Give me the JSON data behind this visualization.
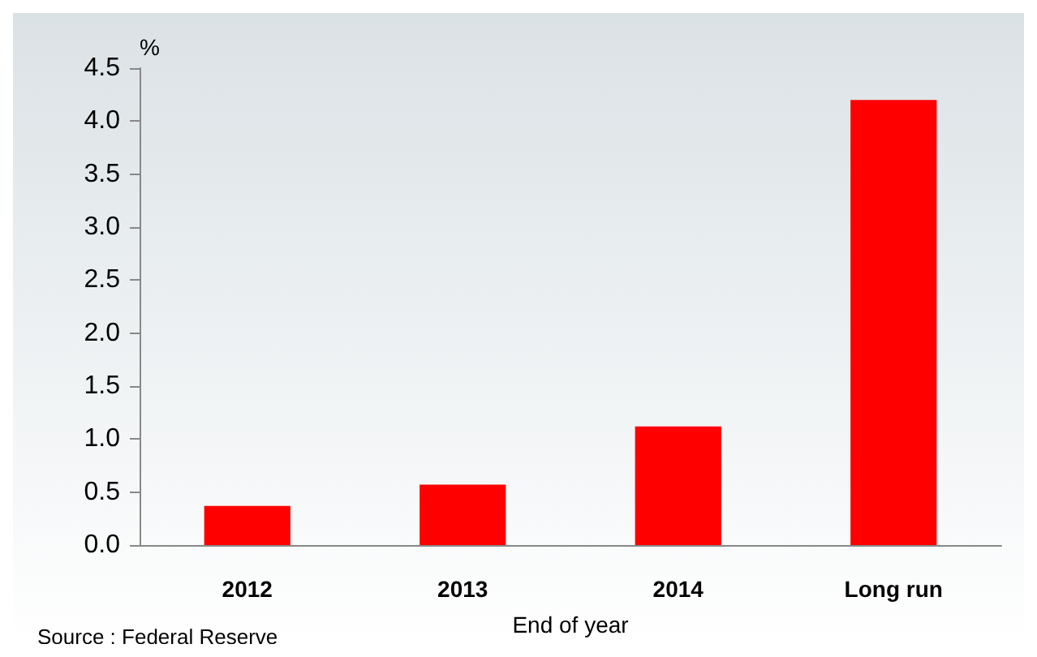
{
  "chart_data": {
    "type": "bar",
    "categories": [
      "2012",
      "2013",
      "2014",
      "Long run"
    ],
    "values": [
      0.37,
      0.57,
      1.12,
      4.2
    ],
    "color": "#ff0000",
    "ylabel": "%",
    "xlabel": "End of year",
    "ylim": [
      0,
      4.5
    ],
    "yticks": [
      {
        "value": 0,
        "label": "0.0"
      },
      0.5,
      {
        "value": 1,
        "label": "1.0"
      },
      1.5,
      {
        "value": 2,
        "label": "2.0"
      },
      2.5,
      {
        "value": 3,
        "label": "3.0"
      },
      3.5,
      {
        "value": 4,
        "label": "4.0"
      },
      4.5
    ],
    "grid": false,
    "annotations": [
      "Source : Federal Reserve"
    ]
  }
}
